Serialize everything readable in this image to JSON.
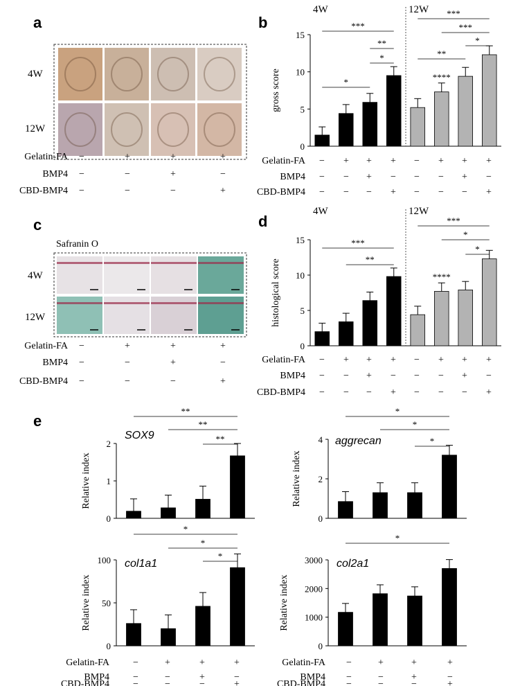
{
  "colors": {
    "black_bar": "#000000",
    "gray_bar": "#b3b3b3",
    "line": "#000000"
  },
  "conditions": {
    "rows": [
      "Gelatin-FA",
      "BMP4",
      "CBD-BMP4"
    ],
    "values": [
      [
        "−",
        "+",
        "+",
        "+"
      ],
      [
        "−",
        "−",
        "+",
        "−"
      ],
      [
        "−",
        "−",
        "−",
        "+"
      ]
    ]
  },
  "panel_a": {
    "letter": "a",
    "row_labels": [
      "4W",
      "12W"
    ],
    "photo_tones": [
      [
        "#c9a27f",
        "#c8b09a",
        "#cdbeb2",
        "#d9ccc2"
      ],
      [
        "#b9a6ae",
        "#cfc0b3",
        "#d7c0b4",
        "#d3b7a5"
      ]
    ]
  },
  "panel_c": {
    "letter": "c",
    "stain": "Safranin O",
    "row_labels": [
      "4W",
      "12W"
    ],
    "image_tones": [
      [
        "#e7e2e5",
        "#ebe8ea",
        "#e6e0e3",
        "#6aa89a"
      ],
      [
        "#8fc0b5",
        "#e5e0e4",
        "#d9d0d6",
        "#5e9f92"
      ]
    ]
  },
  "chart_data": [
    {
      "panel": "b",
      "type": "bar",
      "ylabel": "gross score",
      "ylim": [
        0,
        15
      ],
      "yticks": [
        "0",
        "5",
        "10",
        "15"
      ],
      "groups": [
        "4W",
        "12W"
      ],
      "categories": [
        "1",
        "2",
        "3",
        "4",
        "5",
        "6",
        "7",
        "8"
      ],
      "values": [
        1.5,
        4.4,
        5.9,
        9.5,
        5.2,
        7.3,
        9.4,
        12.3
      ],
      "errors": [
        1.1,
        1.2,
        1.2,
        1.2,
        1.2,
        1.2,
        1.2,
        1.2
      ],
      "bar_colors": [
        "#000000",
        "#000000",
        "#000000",
        "#000000",
        "#b3b3b3",
        "#b3b3b3",
        "#b3b3b3",
        "#b3b3b3"
      ],
      "bar_marks": [
        {
          "bar": 5,
          "label": "****"
        }
      ],
      "brackets": [
        {
          "from": 0,
          "to": 3,
          "label": "***"
        },
        {
          "from": 2,
          "to": 3,
          "label": "**"
        },
        {
          "from": 2,
          "to": 3,
          "label": "*"
        },
        {
          "from": 0,
          "to": 2,
          "label": "*"
        },
        {
          "from": 4,
          "to": 7,
          "label": "***"
        },
        {
          "from": 5,
          "to": 7,
          "label": "***"
        },
        {
          "from": 6,
          "to": 7,
          "label": "*"
        },
        {
          "from": 4,
          "to": 6,
          "label": "**"
        }
      ]
    },
    {
      "panel": "d",
      "type": "bar",
      "ylabel": "histological score",
      "ylim": [
        0,
        15
      ],
      "yticks": [
        "0",
        "5",
        "10",
        "15"
      ],
      "groups": [
        "4W",
        "12W"
      ],
      "categories": [
        "1",
        "2",
        "3",
        "4",
        "5",
        "6",
        "7",
        "8"
      ],
      "values": [
        2.0,
        3.4,
        6.4,
        9.8,
        4.4,
        7.7,
        7.9,
        12.3
      ],
      "errors": [
        1.2,
        1.2,
        1.2,
        1.2,
        1.2,
        1.2,
        1.2,
        1.2
      ],
      "bar_colors": [
        "#000000",
        "#000000",
        "#000000",
        "#000000",
        "#b3b3b3",
        "#b3b3b3",
        "#b3b3b3",
        "#b3b3b3"
      ],
      "bar_marks": [
        {
          "bar": 5,
          "label": "****"
        }
      ],
      "brackets": [
        {
          "from": 0,
          "to": 3,
          "label": "***"
        },
        {
          "from": 1,
          "to": 3,
          "label": "**"
        },
        {
          "from": 4,
          "to": 7,
          "label": "***"
        },
        {
          "from": 5,
          "to": 7,
          "label": "*"
        },
        {
          "from": 6,
          "to": 7,
          "label": "*"
        }
      ]
    },
    {
      "panel": "e",
      "type": "bar",
      "title": "SOX9",
      "ylabel": "Relative index",
      "ylim": [
        0,
        2
      ],
      "yticks": [
        "0",
        "1",
        "2"
      ],
      "categories": [
        "1",
        "2",
        "3",
        "4"
      ],
      "values": [
        0.19,
        0.28,
        0.51,
        1.67
      ],
      "errors": [
        0.33,
        0.34,
        0.35,
        0.33
      ],
      "brackets": [
        {
          "from": 0,
          "to": 3,
          "label": "**"
        },
        {
          "from": 1,
          "to": 3,
          "label": "**"
        },
        {
          "from": 2,
          "to": 3,
          "label": "**"
        }
      ]
    },
    {
      "panel": "e",
      "type": "bar",
      "title": "aggrecan",
      "ylabel": "Relative index",
      "ylim": [
        0,
        4
      ],
      "yticks": [
        "0",
        "2",
        "4"
      ],
      "categories": [
        "1",
        "2",
        "3",
        "4"
      ],
      "values": [
        0.85,
        1.3,
        1.3,
        3.2
      ],
      "errors": [
        0.5,
        0.5,
        0.5,
        0.5
      ],
      "brackets": [
        {
          "from": 0,
          "to": 3,
          "label": "*"
        },
        {
          "from": 1,
          "to": 3,
          "label": "*"
        },
        {
          "from": 2,
          "to": 3,
          "label": "*"
        }
      ]
    },
    {
      "panel": "e",
      "type": "bar",
      "title": "col1a1",
      "ylabel": "Relative index",
      "ylim": [
        0,
        100
      ],
      "yticks": [
        "0",
        "50",
        "100"
      ],
      "categories": [
        "1",
        "2",
        "3",
        "4"
      ],
      "values": [
        26,
        20,
        46,
        91
      ],
      "errors": [
        16,
        16,
        16,
        16
      ],
      "brackets": [
        {
          "from": 0,
          "to": 3,
          "label": "*"
        },
        {
          "from": 1,
          "to": 3,
          "label": "*"
        },
        {
          "from": 2,
          "to": 3,
          "label": "*"
        }
      ]
    },
    {
      "panel": "e",
      "type": "bar",
      "title": "col2a1",
      "ylabel": "Relative index",
      "ylim": [
        0,
        3000
      ],
      "yticks": [
        "0",
        "1000",
        "2000",
        "3000"
      ],
      "categories": [
        "1",
        "2",
        "3",
        "4"
      ],
      "values": [
        1170,
        1820,
        1740,
        2700
      ],
      "errors": [
        310,
        310,
        320,
        310
      ],
      "brackets": [
        {
          "from": 0,
          "to": 3,
          "label": "*"
        }
      ]
    }
  ],
  "panel_e_letter": "e"
}
